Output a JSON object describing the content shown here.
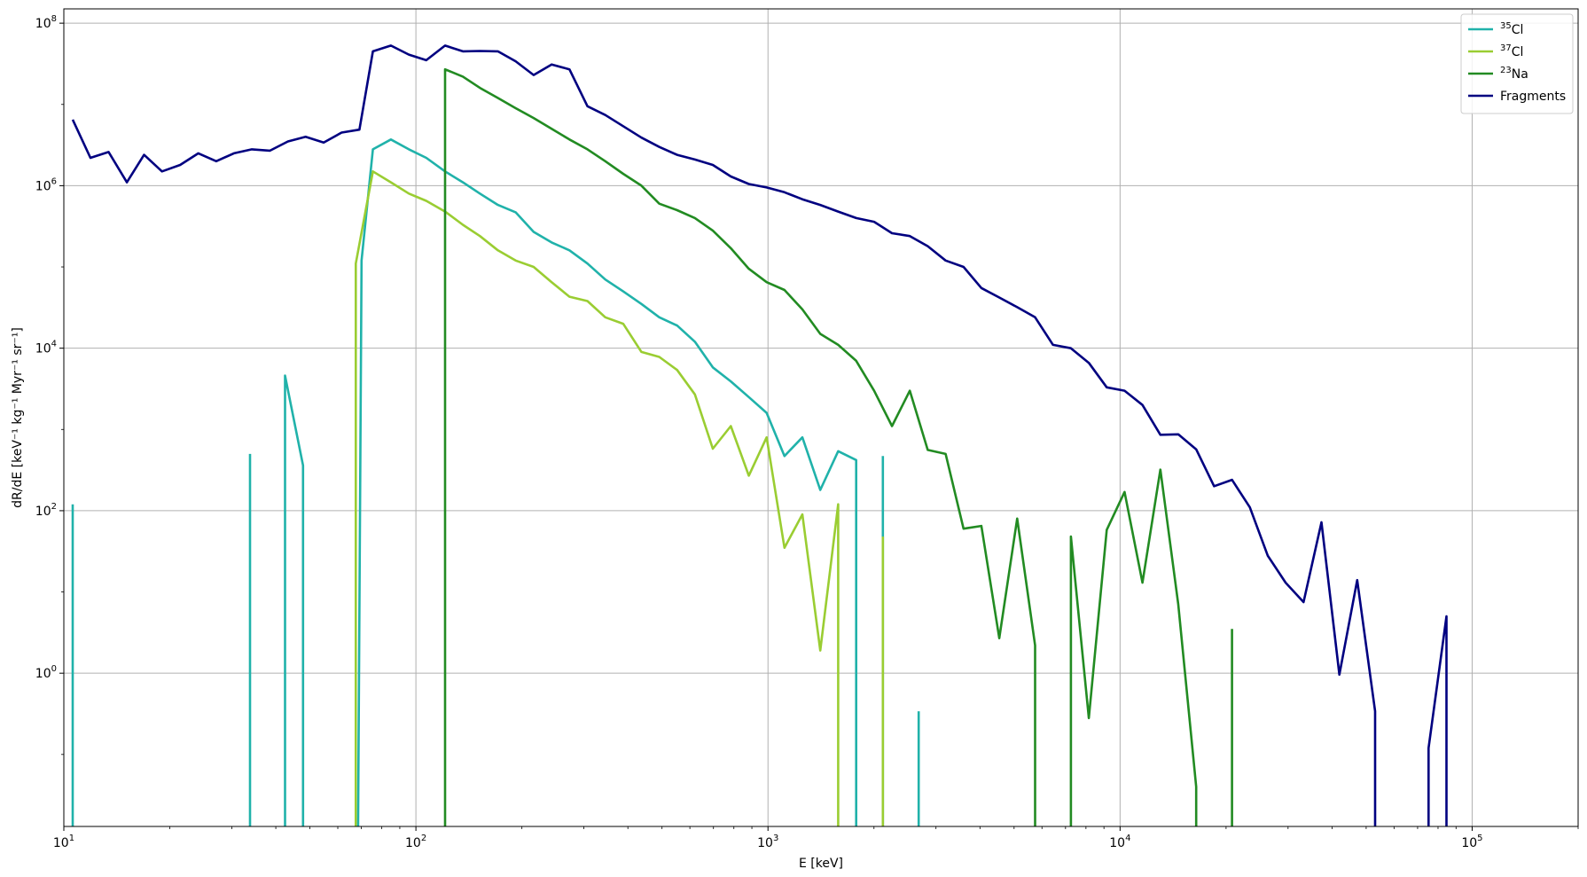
{
  "chart_data": {
    "type": "line",
    "xlabel": "E [keV]",
    "ylabel": "dR/dE [keV⁻¹ kg⁻¹ Myr⁻¹ sr⁻¹]",
    "xscale": "log",
    "yscale": "log",
    "xlim": [
      10,
      200000
    ],
    "ylim": [
      0.013,
      150000000
    ],
    "grid": true,
    "legend_position": "top-right",
    "x_ticks": [
      {
        "value": 10,
        "base": "10",
        "exp": "1"
      },
      {
        "value": 100,
        "base": "10",
        "exp": "2"
      },
      {
        "value": 1000,
        "base": "10",
        "exp": "3"
      },
      {
        "value": 10000,
        "base": "10",
        "exp": "4"
      },
      {
        "value": 100000,
        "base": "10",
        "exp": "5"
      }
    ],
    "y_ticks": [
      {
        "value": 1,
        "base": "10",
        "exp": "0"
      },
      {
        "value": 100,
        "base": "10",
        "exp": "2"
      },
      {
        "value": 10000,
        "base": "10",
        "exp": "4"
      },
      {
        "value": 1000000,
        "base": "10",
        "exp": "6"
      },
      {
        "value": 100000000,
        "base": "10",
        "exp": "8"
      }
    ],
    "series": [
      {
        "name": "35Cl",
        "legend_sup": "35",
        "legend_main": "Cl",
        "color": "#20b2aa",
        "segments": [
          [
            [
              10.6,
              0.013
            ],
            [
              10.6,
              120
            ]
          ],
          [
            [
              33.8,
              0.013
            ],
            [
              33.8,
              500
            ]
          ],
          [
            [
              42.5,
              0.013
            ],
            [
              42.5,
              4600
            ],
            [
              47.8,
              360
            ],
            [
              47.8,
              0.013
            ]
          ],
          [
            [
              68.5,
              0.013
            ],
            [
              70.1,
              120000
            ],
            [
              75.5,
              2800000
            ],
            [
              84.9,
              3700000
            ],
            [
              95.5,
              2800000
            ],
            [
              107,
              2200000
            ],
            [
              121,
              1500000
            ],
            [
              136,
              1100000
            ],
            [
              152,
              800000
            ],
            [
              171,
              580000
            ],
            [
              192,
              470000
            ],
            [
              216,
              270000
            ],
            [
              243,
              200000
            ],
            [
              273,
              160000
            ],
            [
              307,
              110000
            ],
            [
              345,
              70000
            ],
            [
              388,
              50000
            ],
            [
              437,
              35000
            ],
            [
              491,
              24000
            ],
            [
              552,
              19000
            ],
            [
              620,
              12000
            ],
            [
              697,
              5800
            ],
            [
              784,
              3900
            ],
            [
              882,
              2500
            ],
            [
              991,
              1600
            ],
            [
              1114,
              470
            ],
            [
              1252,
              800
            ],
            [
              1408,
              180
            ],
            [
              1583,
              540
            ],
            [
              1780,
              420
            ],
            [
              1780,
              0.013
            ]
          ],
          [
            [
              2120,
              0.013
            ],
            [
              2120,
              470
            ]
          ],
          [
            [
              2680,
              0.013
            ],
            [
              2680,
              0.34
            ]
          ]
        ]
      },
      {
        "name": "37Cl",
        "legend_sup": "37",
        "legend_main": "Cl",
        "color": "#9acd32",
        "segments": [
          [
            [
              67.5,
              0.013
            ],
            [
              67.5,
              110000
            ],
            [
              75.5,
              1500000
            ],
            [
              84.9,
              1100000
            ],
            [
              95.5,
              800000
            ],
            [
              107,
              650000
            ],
            [
              121,
              480000
            ],
            [
              136,
              330000
            ],
            [
              152,
              240000
            ],
            [
              171,
              160000
            ],
            [
              192,
              120000
            ],
            [
              216,
              100000
            ],
            [
              243,
              65000
            ],
            [
              273,
              43000
            ],
            [
              307,
              38000
            ],
            [
              345,
              24000
            ],
            [
              388,
              20000
            ],
            [
              437,
              9000
            ],
            [
              491,
              7800
            ],
            [
              552,
              5400
            ],
            [
              620,
              2700
            ],
            [
              697,
              580
            ],
            [
              784,
              1100
            ],
            [
              882,
              270
            ],
            [
              991,
              800
            ],
            [
              1114,
              35
            ],
            [
              1252,
              90
            ],
            [
              1408,
              1.9
            ],
            [
              1583,
              120
            ],
            [
              1583,
              0.013
            ]
          ],
          [
            [
              2120,
              0.013
            ],
            [
              2120,
              48
            ]
          ]
        ]
      },
      {
        "name": "23Na",
        "legend_sup": "23",
        "legend_main": "Na",
        "color": "#228b22",
        "segments": [
          [
            [
              121,
              0.013
            ],
            [
              121,
              27000000
            ],
            [
              136,
              22000000
            ],
            [
              152,
              16000000
            ],
            [
              171,
              12000000
            ],
            [
              192,
              9000000
            ],
            [
              216,
              6800000
            ],
            [
              243,
              5000000
            ],
            [
              273,
              3700000
            ],
            [
              307,
              2800000
            ],
            [
              345,
              2000000
            ],
            [
              388,
              1400000
            ],
            [
              437,
              1000000
            ],
            [
              491,
              600000
            ],
            [
              552,
              500000
            ],
            [
              620,
              400000
            ],
            [
              697,
              280000
            ],
            [
              784,
              170000
            ],
            [
              882,
              95000
            ],
            [
              991,
              65000
            ],
            [
              1114,
              52000
            ],
            [
              1252,
              30000
            ],
            [
              1408,
              15000
            ],
            [
              1583,
              11000
            ],
            [
              1780,
              7000
            ],
            [
              2001,
              3000
            ],
            [
              2250,
              1100
            ],
            [
              2529,
              3000
            ],
            [
              2843,
              560
            ],
            [
              3196,
              500
            ],
            [
              3592,
              60
            ],
            [
              4038,
              65
            ],
            [
              4539,
              2.7
            ],
            [
              5103,
              80
            ],
            [
              5737,
              2.2
            ],
            [
              5737,
              0.013
            ]
          ],
          [
            [
              7250,
              0.013
            ],
            [
              7250,
              48
            ],
            [
              8151,
              0.28
            ],
            [
              9163,
              58
            ],
            [
              10300,
              170
            ],
            [
              11580,
              13
            ],
            [
              13018,
              320
            ],
            [
              14634,
              7
            ],
            [
              16450,
              0.04
            ],
            [
              16450,
              0.013
            ]
          ],
          [
            [
              20790,
              0.013
            ],
            [
              20790,
              3.5
            ]
          ]
        ]
      },
      {
        "name": "Fragments",
        "legend_sup": "",
        "legend_main": "Fragments",
        "color": "#000080",
        "segments": [
          [
            [
              10.6,
              6500000
            ],
            [
              11.9,
              2200000
            ],
            [
              13.4,
              2600000
            ],
            [
              15.1,
              1100000
            ],
            [
              16.9,
              2400000
            ],
            [
              19.0,
              1500000
            ],
            [
              21.4,
              1800000
            ],
            [
              24.1,
              2500000
            ],
            [
              27.1,
              2000000
            ],
            [
              30.4,
              2500000
            ],
            [
              34.2,
              2800000
            ],
            [
              38.5,
              2700000
            ],
            [
              43.3,
              3500000
            ],
            [
              48.6,
              4000000
            ],
            [
              54.7,
              3400000
            ],
            [
              61.5,
              4500000
            ],
            [
              69.1,
              4900000
            ],
            [
              75.5,
              45000000
            ],
            [
              84.9,
              53000000
            ],
            [
              95.5,
              41000000
            ],
            [
              107,
              35000000
            ],
            [
              121,
              53000000
            ],
            [
              136,
              45000000
            ],
            [
              152,
              45500000
            ],
            [
              171,
              45000000
            ],
            [
              192,
              34000000
            ],
            [
              216,
              23000000
            ],
            [
              243,
              31000000
            ],
            [
              273,
              27000000
            ],
            [
              307,
              9500000
            ],
            [
              345,
              7400000
            ],
            [
              388,
              5400000
            ],
            [
              437,
              3900000
            ],
            [
              491,
              3000000
            ],
            [
              552,
              2400000
            ],
            [
              620,
              2100000
            ],
            [
              697,
              1800000
            ],
            [
              784,
              1300000
            ],
            [
              882,
              1050000
            ],
            [
              991,
              950000
            ],
            [
              1114,
              830000
            ],
            [
              1252,
              680000
            ],
            [
              1408,
              580000
            ],
            [
              1583,
              480000
            ],
            [
              1780,
              400000
            ],
            [
              2001,
              360000
            ],
            [
              2250,
              260000
            ],
            [
              2529,
              240000
            ],
            [
              2843,
              180000
            ],
            [
              3196,
              120000
            ],
            [
              3592,
              100000
            ],
            [
              4038,
              55000
            ],
            [
              4539,
              42000
            ],
            [
              5103,
              32000
            ],
            [
              5737,
              24000
            ],
            [
              6450,
              11000
            ],
            [
              7250,
              10000
            ],
            [
              8151,
              6600
            ],
            [
              9163,
              3300
            ],
            [
              10300,
              3000
            ],
            [
              11580,
              2000
            ],
            [
              13018,
              860
            ],
            [
              14634,
              870
            ],
            [
              16450,
              570
            ],
            [
              18493,
              200
            ],
            [
              20790,
              240
            ],
            [
              23370,
              110
            ],
            [
              26272,
              28
            ],
            [
              29534,
              13
            ],
            [
              33201,
              7.5
            ],
            [
              37323,
              72
            ],
            [
              41957,
              0.96
            ],
            [
              47165,
              14
            ],
            [
              53021,
              0.34
            ],
            [
              53021,
              0.013
            ]
          ],
          [
            [
              75200,
              0.013
            ],
            [
              75200,
              0.12
            ],
            [
              84540,
              5
            ],
            [
              84540,
              0.013
            ]
          ]
        ]
      }
    ]
  }
}
